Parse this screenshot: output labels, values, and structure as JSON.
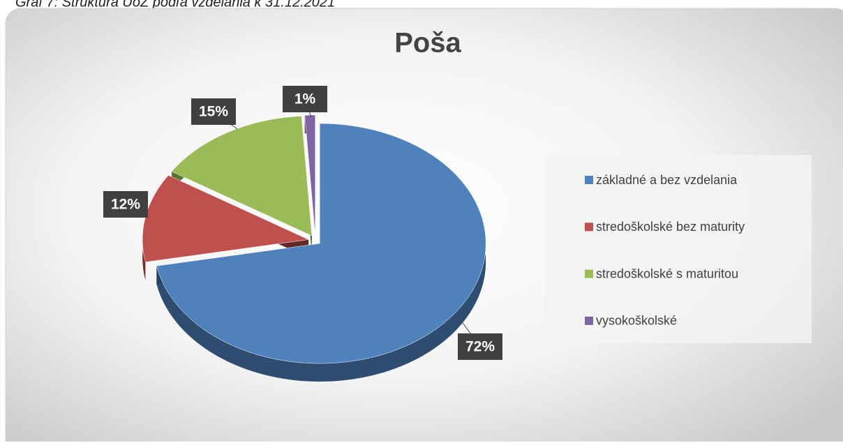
{
  "caption": "Graf 7: Štruktúra UoZ podľa vzdelania k 31.12.2021",
  "chart_data": {
    "type": "pie",
    "title": "Poša",
    "categories": [
      "základné a bez vzdelania",
      "stredoškolské bez maturity",
      "stredoškolské s maturitou",
      "vysokoškolské"
    ],
    "values": [
      72,
      12,
      15,
      1
    ],
    "value_labels": [
      "72%",
      "12%",
      "15%",
      "1%"
    ],
    "colors": [
      "#4f81bd",
      "#c0504d",
      "#9bbb59",
      "#8064a2"
    ],
    "legend": "right"
  }
}
